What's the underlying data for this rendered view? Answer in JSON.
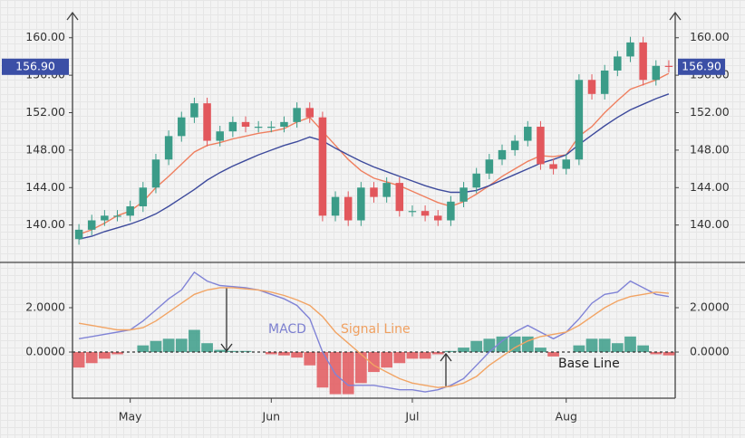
{
  "chart_data": [
    {
      "type": "candlestick",
      "open": [
        138.5,
        139.5,
        140.5,
        141,
        141,
        142,
        144,
        147,
        149.5,
        151.5,
        153,
        149,
        150,
        151,
        150.5,
        150.5,
        150.5,
        151,
        152.5,
        151.5,
        141,
        143,
        140.5,
        144,
        143,
        144.5,
        141.5,
        141.5,
        141,
        140.5,
        142.5,
        144,
        145.5,
        147,
        148,
        149,
        150.5,
        146.5,
        146,
        147,
        155.5,
        154,
        156.5,
        158,
        159.5,
        155.5,
        157
      ],
      "high": [
        140.1,
        141.1,
        141.6,
        141.6,
        142.6,
        144.6,
        147.6,
        150.1,
        152.1,
        153.6,
        153.6,
        150.6,
        151.6,
        151.6,
        151.1,
        151.1,
        151.6,
        153.1,
        153.1,
        152.1,
        143.6,
        143.6,
        144.6,
        144.6,
        145.1,
        145.1,
        142.1,
        142.1,
        141.6,
        143.1,
        144.6,
        146.1,
        147.6,
        148.6,
        149.6,
        151.1,
        151.1,
        147.1,
        147.6,
        156.1,
        156.1,
        157.1,
        158.6,
        160.1,
        160.1,
        157.6,
        157.6
      ],
      "low": [
        137.9,
        138.9,
        139.9,
        140.4,
        140.4,
        141.4,
        143.4,
        146.4,
        148.9,
        150.9,
        148.4,
        148.4,
        149.4,
        149.9,
        149.9,
        149.9,
        149.9,
        150.4,
        150.9,
        140.4,
        140.4,
        139.9,
        139.9,
        142.4,
        142.4,
        140.9,
        140.9,
        140.4,
        139.9,
        139.9,
        141.9,
        143.4,
        144.9,
        146.4,
        147.4,
        148.4,
        145.9,
        145.4,
        145.4,
        146.4,
        153.4,
        153.4,
        155.9,
        157.4,
        154.9,
        154.9,
        156.3
      ],
      "close": [
        139.5,
        140.5,
        141,
        141,
        142,
        144,
        147,
        149.5,
        151.5,
        153,
        149,
        150,
        151,
        150.5,
        150.5,
        150.5,
        151,
        152.5,
        151.5,
        141,
        143,
        140.5,
        144,
        143,
        144.5,
        141.5,
        141.5,
        141,
        140.5,
        142.5,
        144,
        145.5,
        147,
        148,
        149,
        150.5,
        146.5,
        146,
        147,
        155.5,
        154,
        156.5,
        158,
        159.5,
        155.5,
        157,
        156.9
      ],
      "up_color": "#3b9c88",
      "down_color": "#e2575c",
      "series": [
        {
          "color": "#ef7f5f",
          "values": [
            139,
            139.5,
            140.2,
            141,
            141.5,
            142.5,
            144,
            145.2,
            146.5,
            147.8,
            148.5,
            148.8,
            149.2,
            149.5,
            149.8,
            150,
            150.3,
            151,
            151.5,
            150,
            148.5,
            147,
            145.8,
            145,
            144.6,
            144.2,
            143.6,
            143,
            142.4,
            142,
            142.5,
            143.3,
            144.2,
            145.2,
            146,
            146.8,
            147.4,
            147.3,
            147.5,
            149.5,
            150.5,
            152,
            153.3,
            154.5,
            155,
            155.5,
            156.2
          ]
        },
        {
          "color": "#3d4a9c",
          "values": [
            138.5,
            138.8,
            139.3,
            139.7,
            140.1,
            140.6,
            141.2,
            142,
            142.9,
            143.8,
            144.8,
            145.6,
            146.3,
            146.9,
            147.5,
            148,
            148.5,
            148.9,
            149.4,
            149,
            148.2,
            147.5,
            146.8,
            146.2,
            145.7,
            145.2,
            144.7,
            144.2,
            143.8,
            143.5,
            143.5,
            143.7,
            144.2,
            144.8,
            145.4,
            146,
            146.6,
            147,
            147.5,
            148.6,
            149.6,
            150.6,
            151.5,
            152.3,
            152.9,
            153.5,
            154
          ]
        }
      ],
      "last_price": {
        "value": 156.9,
        "label": "156.90"
      },
      "ylim": [
        136.2,
        162.1
      ],
      "yticks": [
        {
          "value": 140,
          "label": "140.00"
        },
        {
          "value": 144,
          "label": "144.00"
        },
        {
          "value": 148,
          "label": "148.00"
        },
        {
          "value": 152,
          "label": "152.00"
        },
        {
          "value": 156,
          "label": "156.00"
        },
        {
          "value": 160,
          "label": "160.00"
        }
      ]
    },
    {
      "type": "macd",
      "categories": [
        null,
        null,
        null,
        null,
        "May",
        null,
        null,
        null,
        null,
        null,
        null,
        null,
        null,
        null,
        null,
        "Jun",
        null,
        null,
        null,
        null,
        null,
        null,
        null,
        null,
        null,
        null,
        "Jul",
        null,
        null,
        null,
        null,
        null,
        null,
        null,
        null,
        null,
        null,
        null,
        "Aug",
        null,
        null,
        null,
        null,
        null,
        null,
        null,
        null
      ],
      "series": [
        {
          "color": "#8083d6",
          "values": [
            0.6,
            0.7,
            0.8,
            0.9,
            1.0,
            1.4,
            1.9,
            2.4,
            2.8,
            3.6,
            3.2,
            3.0,
            2.95,
            2.9,
            2.8,
            2.6,
            2.4,
            2.1,
            1.5,
            0,
            -1.0,
            -1.5,
            -1.5,
            -1.5,
            -1.6,
            -1.7,
            -1.7,
            -1.8,
            -1.7,
            -1.5,
            -1.2,
            -0.6,
            0,
            0.5,
            0.9,
            1.2,
            0.9,
            0.6,
            0.9,
            1.5,
            2.2,
            2.6,
            2.7,
            3.2,
            2.9,
            2.6,
            2.5
          ]
        },
        {
          "color": "#f2a464",
          "values": [
            1.3,
            1.2,
            1.1,
            1.0,
            1.0,
            1.1,
            1.4,
            1.8,
            2.2,
            2.6,
            2.8,
            2.9,
            2.9,
            2.85,
            2.8,
            2.7,
            2.55,
            2.35,
            2.1,
            1.6,
            0.9,
            0.4,
            -0.1,
            -0.6,
            -0.9,
            -1.2,
            -1.4,
            -1.5,
            -1.6,
            -1.55,
            -1.4,
            -1.1,
            -0.6,
            -0.2,
            0.2,
            0.5,
            0.7,
            0.8,
            0.9,
            1.2,
            1.6,
            2.0,
            2.3,
            2.5,
            2.6,
            2.7,
            2.65
          ]
        }
      ],
      "histogram": {
        "up_color": "#3b9c88",
        "down_color": "#e2575c",
        "values": [
          -0.7,
          -0.5,
          -0.3,
          -0.1,
          0,
          0.3,
          0.5,
          0.6,
          0.6,
          1.0,
          0.4,
          0.1,
          0.05,
          0.05,
          0,
          -0.1,
          -0.15,
          -0.25,
          -0.6,
          -1.6,
          -1.9,
          -1.9,
          -1.4,
          -0.9,
          -0.7,
          -0.5,
          -0.3,
          -0.3,
          -0.1,
          0.05,
          0.2,
          0.5,
          0.6,
          0.7,
          0.7,
          0.7,
          0.2,
          -0.2,
          0,
          0.3,
          0.6,
          0.6,
          0.4,
          0.7,
          0.3,
          -0.1,
          -0.15
        ]
      },
      "annotations": [
        "MACD",
        "Signal Line",
        "Base Line"
      ],
      "ylim": [
        -2.08,
        4.04
      ],
      "yticks": [
        {
          "value": 0,
          "label": "0.0000"
        },
        {
          "value": 2,
          "label": "2.0000"
        }
      ]
    }
  ]
}
